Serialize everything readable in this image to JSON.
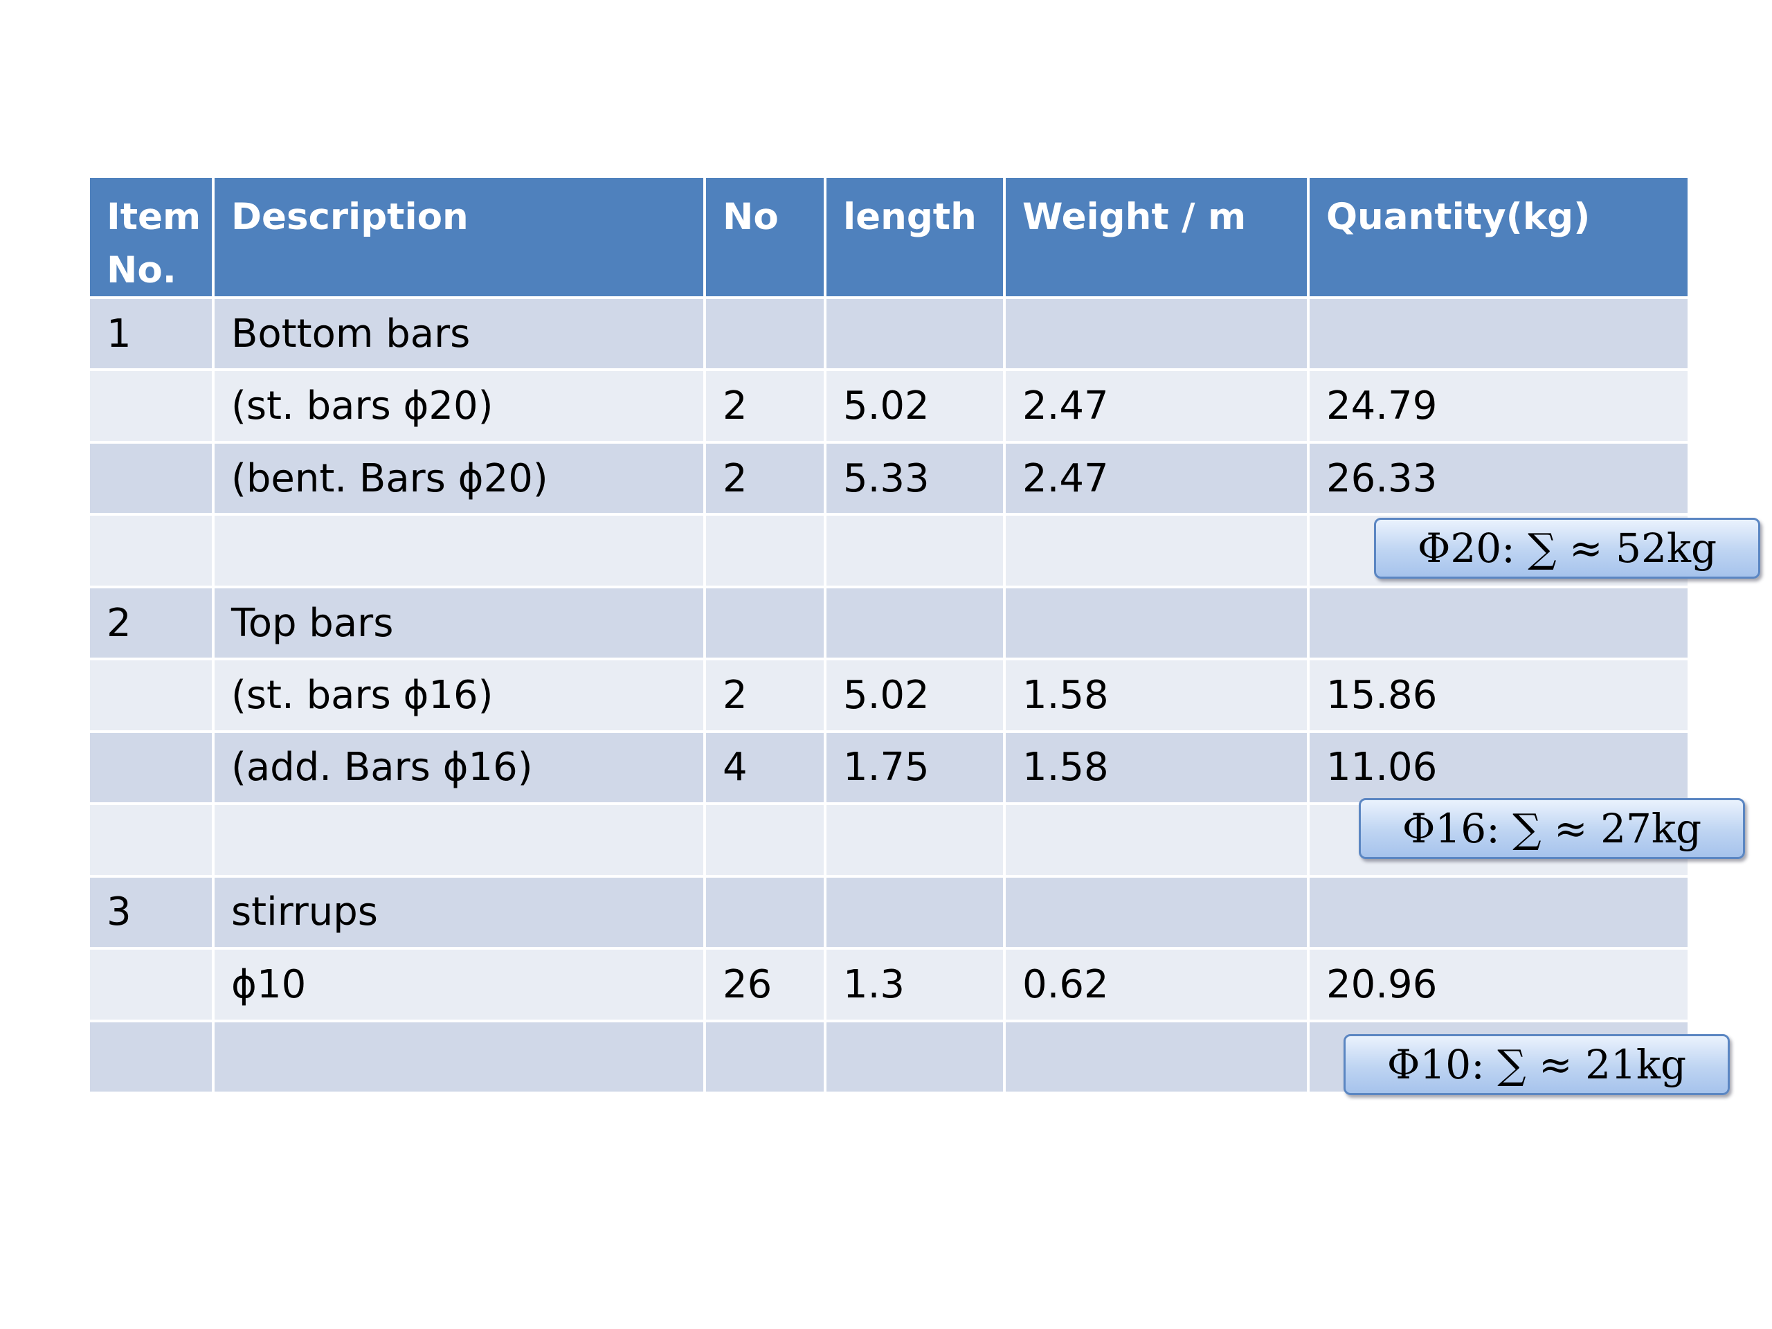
{
  "columns": [
    "Item No.",
    "Description",
    "No",
    "length",
    "Weight / m",
    "Quantity(kg)"
  ],
  "rows": [
    [
      "1",
      "Bottom bars",
      "",
      "",
      "",
      ""
    ],
    [
      "",
      "(st. bars ϕ20)",
      "2",
      "5.02",
      "2.47",
      "24.79"
    ],
    [
      "",
      "(bent. Bars ϕ20)",
      "2",
      "5.33",
      "2.47",
      "26.33"
    ],
    [
      "",
      "",
      "",
      "",
      "",
      ""
    ],
    [
      "2",
      "Top bars",
      "",
      "",
      "",
      ""
    ],
    [
      "",
      "(st. bars ϕ16)",
      "2",
      "5.02",
      "1.58",
      "15.86"
    ],
    [
      "",
      "(add. Bars ϕ16)",
      "4",
      "1.75",
      "1.58",
      "11.06"
    ],
    [
      "",
      "",
      "",
      "",
      "",
      ""
    ],
    [
      "3",
      "stirrups",
      "",
      "",
      "",
      ""
    ],
    [
      "",
      "ϕ10",
      "26",
      "1.3",
      "0.62",
      "20.96"
    ],
    [
      "",
      "",
      "",
      "",
      "",
      ""
    ]
  ],
  "totals": [
    {
      "label": "Φ20:  ∑ ≈ 52kg"
    },
    {
      "label": "Φ16:  ∑ ≈ 27kg"
    },
    {
      "label": "Φ10:  ∑ ≈ 21kg"
    }
  ],
  "colors": {
    "header": "#4f81bd",
    "row_odd": "#d0d8e8",
    "row_even": "#e9edf4",
    "badge_border": "#5b86c2"
  }
}
